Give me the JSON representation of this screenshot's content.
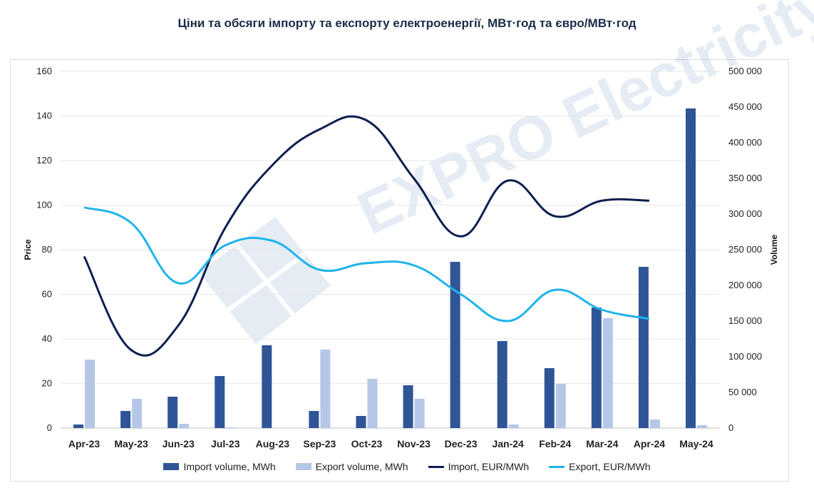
{
  "chart_data": {
    "type": "bar",
    "title": "Ціни та обсяги імпорту та експорту електроенергії, МВт·год та євро/МВт·год",
    "categories": [
      "Apr-23",
      "May-23",
      "Jun-23",
      "Jul-23",
      "Aug-23",
      "Sep-23",
      "Oct-23",
      "Nov-23",
      "Dec-23",
      "Jan-24",
      "Feb-24",
      "Mar-24",
      "Apr-24",
      "May-24"
    ],
    "ylabel": "Price",
    "y2label": "Volume",
    "ylim": [
      0,
      160
    ],
    "y2lim": [
      0,
      500000
    ],
    "yticks": [
      "0",
      "20",
      "40",
      "60",
      "80",
      "100",
      "120",
      "140",
      "160"
    ],
    "y2ticks": [
      "0",
      "50 000",
      "100 000",
      "150 000",
      "200 000",
      "250 000",
      "300 000",
      "350 000",
      "400 000",
      "450 000",
      "500 000"
    ],
    "grid": true,
    "legend_position": "bottom",
    "series": [
      {
        "name": "Import volume, MWh",
        "type": "bar",
        "axis": "right",
        "color": "#2f5597",
        "values": [
          5000,
          24000,
          44000,
          73000,
          116000,
          24000,
          17000,
          60000,
          233000,
          122000,
          84000,
          169000,
          226000,
          448000
        ]
      },
      {
        "name": "Export volume, MWh",
        "type": "bar",
        "axis": "right",
        "color": "#b4c7e7",
        "values": [
          96000,
          41000,
          6000,
          1000,
          0,
          110000,
          69000,
          41000,
          0,
          5000,
          62000,
          154000,
          12000,
          4000
        ]
      },
      {
        "name": "Import, EUR/MWh",
        "type": "line",
        "axis": "left",
        "color": "#0d1f4f",
        "values": [
          77,
          35,
          46,
          90,
          118,
          134,
          138,
          112,
          86,
          111,
          95,
          102,
          102,
          null
        ]
      },
      {
        "name": "Export, EUR/MWh",
        "type": "line",
        "axis": "left",
        "color": "#1fb4ea",
        "values": [
          99,
          92,
          65,
          82,
          84,
          71,
          74,
          73,
          60,
          48,
          62,
          53,
          49,
          null
        ]
      }
    ]
  },
  "watermark": "EXPRO Electricity"
}
